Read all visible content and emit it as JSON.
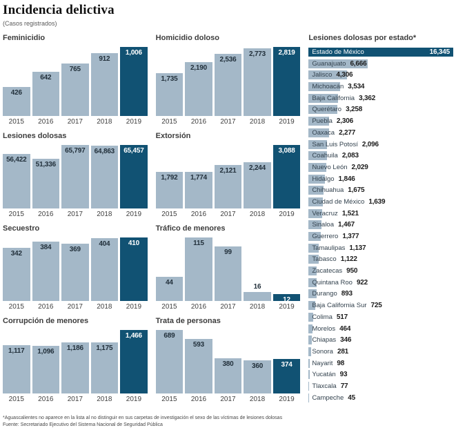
{
  "header": {
    "title": "Incidencia delictiva",
    "subtitle": "(Casos registrados)"
  },
  "colors": {
    "bar_light": "#a4b8c8",
    "bar_dark": "#115273",
    "label_dark": "#22303b",
    "label_light": "#ffffff"
  },
  "chart_data": [
    {
      "type": "bar",
      "title": "Feminicidio",
      "categories": [
        "2015",
        "2016",
        "2017",
        "2018",
        "2019"
      ],
      "values": [
        426,
        642,
        765,
        912,
        1006
      ],
      "labels": [
        "426",
        "642",
        "765",
        "912",
        "1,006"
      ]
    },
    {
      "type": "bar",
      "title": "Homicidio doloso",
      "categories": [
        "2015",
        "2016",
        "2017",
        "2018",
        "2019"
      ],
      "values": [
        1735,
        2190,
        2536,
        2773,
        2819
      ],
      "labels": [
        "1,735",
        "2,190",
        "2,536",
        "2,773",
        "2,819"
      ]
    },
    {
      "type": "bar",
      "title": "Lesiones dolosas",
      "categories": [
        "2015",
        "2016",
        "2017",
        "2018",
        "2019"
      ],
      "values": [
        56422,
        51336,
        65797,
        64863,
        65457
      ],
      "labels": [
        "56,422",
        "51,336",
        "65,797",
        "64,863",
        "65,457"
      ]
    },
    {
      "type": "bar",
      "title": "Extorsión",
      "categories": [
        "2015",
        "2016",
        "2017",
        "2018",
        "2019"
      ],
      "values": [
        1792,
        1774,
        2121,
        2244,
        3088
      ],
      "labels": [
        "1,792",
        "1,774",
        "2,121",
        "2,244",
        "3,088"
      ]
    },
    {
      "type": "bar",
      "title": "Secuestro",
      "categories": [
        "2015",
        "2016",
        "2017",
        "2018",
        "2019"
      ],
      "values": [
        342,
        384,
        369,
        404,
        410
      ],
      "labels": [
        "342",
        "384",
        "369",
        "404",
        "410"
      ]
    },
    {
      "type": "bar",
      "title": "Tráfico de menores",
      "categories": [
        "2015",
        "2016",
        "2017",
        "2018",
        "2019"
      ],
      "values": [
        44,
        115,
        99,
        16,
        12
      ],
      "labels": [
        "44",
        "115",
        "99",
        "16",
        "12"
      ]
    },
    {
      "type": "bar",
      "title": "Corrupción de menores",
      "categories": [
        "2015",
        "2016",
        "2017",
        "2018",
        "2019"
      ],
      "values": [
        1117,
        1096,
        1186,
        1175,
        1466
      ],
      "labels": [
        "1,117",
        "1,096",
        "1,186",
        "1,175",
        "1,466"
      ]
    },
    {
      "type": "bar",
      "title": "Trata de personas",
      "categories": [
        "2015",
        "2016",
        "2017",
        "2018",
        "2019"
      ],
      "values": [
        689,
        593,
        380,
        360,
        374
      ],
      "labels": [
        "689",
        "593",
        "380",
        "360",
        "374"
      ]
    },
    {
      "type": "bar",
      "orientation": "horizontal",
      "title": "Lesiones dolosas por estado*",
      "categories": [
        "Estado de México",
        "Guanajuato",
        "Jalisco",
        "Michoacán",
        "Baja California",
        "Querétaro",
        "Puebla",
        "Oaxaca",
        "San Luis Potosí",
        "Coahuila",
        "Nuevo León",
        "Hidalgo",
        "Chihuahua",
        "Ciudad de México",
        "Veracruz",
        "Sinaloa",
        "Guerrero",
        "Tamaulipas",
        "Tabasco",
        "Zacatecas",
        "Quintana Roo",
        "Durango",
        "Baja California Sur",
        "Colima",
        "Morelos",
        "Chiapas",
        "Sonora",
        "Nayarit",
        "Yucatán",
        "Tlaxcala",
        "Campeche"
      ],
      "values": [
        16345,
        6666,
        4306,
        3534,
        3362,
        3258,
        2306,
        2277,
        2096,
        2083,
        2029,
        1846,
        1675,
        1639,
        1521,
        1467,
        1377,
        1137,
        1122,
        950,
        922,
        893,
        725,
        517,
        464,
        346,
        281,
        98,
        93,
        77,
        45
      ],
      "labels": [
        "16,345",
        "6,666",
        "4,306",
        "3,534",
        "3,362",
        "3,258",
        "2,306",
        "2,277",
        "2,096",
        "2,083",
        "2,029",
        "1,846",
        "1,675",
        "1,639",
        "1,521",
        "1,467",
        "1,377",
        "1,137",
        "1,122",
        "950",
        "922",
        "893",
        "725",
        "517",
        "464",
        "346",
        "281",
        "98",
        "93",
        "77",
        "45"
      ]
    }
  ],
  "footer": {
    "note": "*Aguascalientes no aparece en la lista al no distinguir en sus carpetas de investigación el sexo de las víctimas de lesiones dolosas",
    "source": "Fuente: Secretariado Ejecutivo del Sistema Nacional de Seguridad Pública"
  }
}
